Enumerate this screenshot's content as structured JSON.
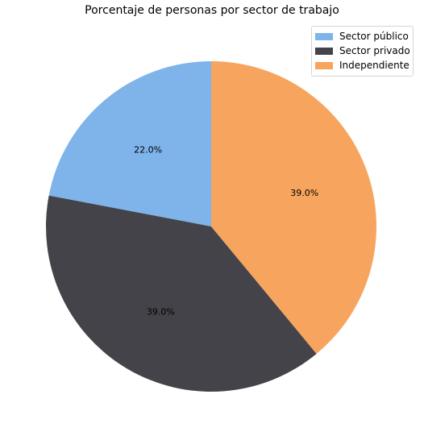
{
  "chart_data": {
    "type": "pie",
    "title": "Porcentaje de personas por sector de trabajo",
    "categories": [
      "Sector público",
      "Sector privado",
      "Independiente"
    ],
    "values": [
      22.0,
      39.0,
      39.0
    ],
    "labels": [
      "22.0%",
      "39.0%",
      "39.0%"
    ],
    "colors": [
      "#7eb4ea",
      "#444349",
      "#f7a55e"
    ],
    "start_angle_deg": 90,
    "direction": "counterclockwise",
    "legend_position": "top-right"
  }
}
